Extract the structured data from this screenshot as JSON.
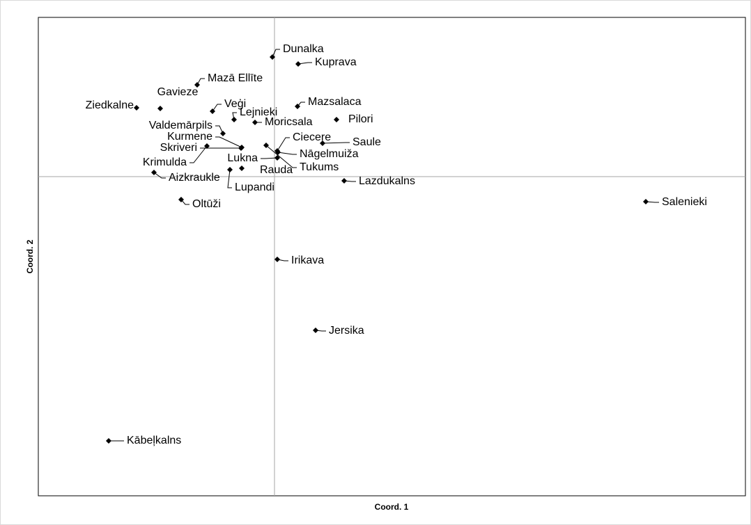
{
  "chart_data": {
    "type": "scatter",
    "xlabel": "Coord. 1",
    "ylabel": "Coord. 2",
    "labels": [
      "Dunalka",
      "Kuprava",
      "Mazā Ellīte",
      "Gavieze",
      "Ziedkalne",
      "Veģi",
      "Lejnieki",
      "Moricsala",
      "Mazsalaca",
      "Pilori",
      "Valdemārpils",
      "Kurmene",
      "Skriveri",
      "Krimulda",
      "Aizkraukle",
      "Ciecere",
      "Saule",
      "Nāgelmuiža",
      "Tukums",
      "Lukna",
      "Rauda",
      "Lupandi",
      "Lazdukalns",
      "Salenieki",
      "Oltūži",
      "Irikava",
      "Jersika",
      "Kābeļkalns"
    ],
    "x": [
      -0.03,
      0.34,
      -1.11,
      -1.64,
      -1.98,
      -0.89,
      -0.58,
      -0.28,
      0.33,
      0.89,
      -0.74,
      -0.47,
      -0.48,
      -0.97,
      -1.73,
      0.04,
      0.69,
      0.05,
      -0.12,
      0.04,
      -0.47,
      -0.64,
      1.0,
      5.33,
      -1.34,
      0.04,
      0.59,
      -2.38
    ],
    "y": [
      1.72,
      1.62,
      1.32,
      0.98,
      0.99,
      0.94,
      0.82,
      0.78,
      1.01,
      0.82,
      0.62,
      0.42,
      0.41,
      0.44,
      0.06,
      0.37,
      0.48,
      0.35,
      0.45,
      0.27,
      0.12,
      0.1,
      -0.06,
      -0.36,
      -0.33,
      -1.19,
      -2.21,
      -3.8
    ],
    "color": "#000000",
    "xlim": [
      -3.39,
      6.76
    ],
    "ylim": [
      -4.59,
      2.29
    ],
    "zero_lines": true
  }
}
